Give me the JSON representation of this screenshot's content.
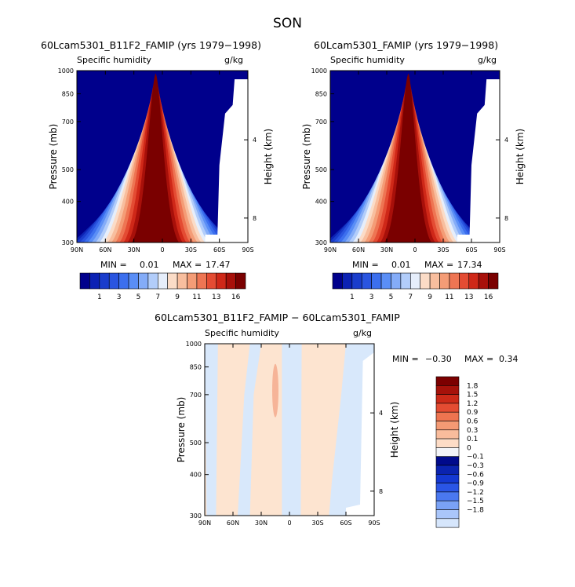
{
  "season": "SON",
  "colors": {
    "blue_scale": [
      "#00008c",
      "#0c22b4",
      "#1a3dcc",
      "#2a55e0",
      "#3c6fee",
      "#5a8ef6",
      "#84acf8",
      "#b2cdfa",
      "#e6eefb",
      "#fbdcc7",
      "#f8be9e",
      "#f49c76",
      "#ee7553",
      "#e44c33",
      "#cf2818",
      "#a8100a",
      "#7a0000"
    ],
    "diff_neg": [
      "#000a8c",
      "#0a23b0",
      "#1438d2",
      "#2a55e6",
      "#4a78f0",
      "#7aa2f6",
      "#aac6fa",
      "#d6e6fc"
    ],
    "diff_zero": "#f2f4f8",
    "diff_pos": [
      "#fddcc6",
      "#f9bc9c",
      "#f49a74",
      "#ee7450",
      "#e44c32",
      "#cc2a18",
      "#a6120a",
      "#7c0000"
    ],
    "diff_panel_pos": "#fde4d0",
    "diff_panel_neg": "#d8e8fb",
    "diff_peak": "#f6b498"
  },
  "chart_data": [
    {
      "type": "heatmap",
      "title": "60Lcam5301_B11F2_FAMIP (yrs 1979−1998)",
      "subtitle_left": "Specific humidity",
      "subtitle_right": "g/kg",
      "ylabel": "Pressure (mb)",
      "ylabel_right": "Height (km)",
      "x_ticks": [
        "90N",
        "60N",
        "30N",
        "0",
        "30S",
        "60S",
        "90S"
      ],
      "y_ticks": [
        "300",
        "400",
        "500",
        "700",
        "850",
        "1000"
      ],
      "y_right_ticks": [
        "8",
        "4"
      ],
      "min_label": "MIN =",
      "min_value": "0.01",
      "max_label": "MAX =",
      "max_value": "17.47",
      "colorbar_labels": [
        "1",
        "3",
        "5",
        "7",
        "9",
        "11",
        "13",
        "16"
      ],
      "x_range": [
        90,
        -90
      ],
      "y_range": [
        1000,
        300
      ],
      "y_scale": "log"
    },
    {
      "type": "heatmap",
      "title": "60Lcam5301_FAMIP (yrs 1979−1998)",
      "subtitle_left": "Specific humidity",
      "subtitle_right": "g/kg",
      "ylabel": "Pressure (mb)",
      "ylabel_right": "Height (km)",
      "x_ticks": [
        "90N",
        "60N",
        "30N",
        "0",
        "30S",
        "60S",
        "90S"
      ],
      "y_ticks": [
        "300",
        "400",
        "500",
        "700",
        "850",
        "1000"
      ],
      "y_right_ticks": [
        "8",
        "4"
      ],
      "min_label": "MIN =",
      "min_value": "0.01",
      "max_label": "MAX =",
      "max_value": "17.34",
      "colorbar_labels": [
        "1",
        "3",
        "5",
        "7",
        "9",
        "11",
        "13",
        "16"
      ],
      "x_range": [
        90,
        -90
      ],
      "y_range": [
        1000,
        300
      ],
      "y_scale": "log"
    },
    {
      "type": "heatmap",
      "title": "60Lcam5301_B11F2_FAMIP − 60Lcam5301_FAMIP",
      "subtitle_left": "Specific humidity",
      "subtitle_right": "g/kg",
      "ylabel": "Pressure (mb)",
      "ylabel_right": "Height (km)",
      "x_ticks": [
        "90N",
        "60N",
        "30N",
        "0",
        "30S",
        "60S",
        "90S"
      ],
      "y_ticks": [
        "300",
        "400",
        "500",
        "700",
        "850",
        "1000"
      ],
      "y_right_ticks": [
        "8",
        "4"
      ],
      "min_label": "MIN =",
      "min_value": "−0.30",
      "max_label": "MAX =",
      "max_value": "0.34",
      "colorbar_labels": [
        "1.8",
        "1.5",
        "1.2",
        "0.9",
        "0.6",
        "0.3",
        "0.1",
        "0",
        "−0.1",
        "−0.3",
        "−0.6",
        "−0.9",
        "−1.2",
        "−1.5",
        "−1.8"
      ],
      "x_range": [
        90,
        -90
      ],
      "y_range": [
        1000,
        300
      ],
      "y_scale": "log"
    }
  ]
}
